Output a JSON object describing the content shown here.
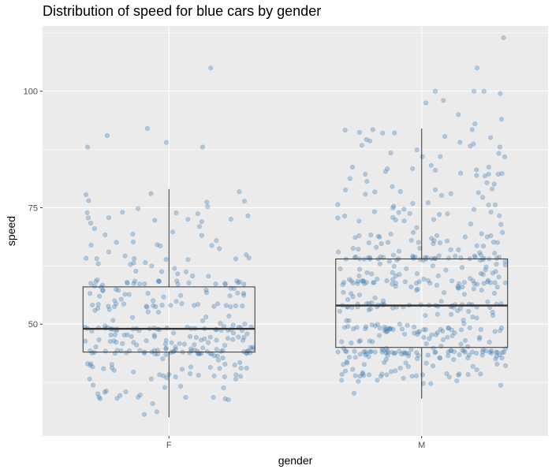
{
  "chart_data": {
    "type": "scatter",
    "subtype": "boxplot-with-jitter",
    "title": "Distribution of speed for blue cars by gender",
    "xlabel": "gender",
    "ylabel": "speed",
    "categories": [
      "F",
      "M"
    ],
    "ylim": [
      26,
      114
    ],
    "yticks": [
      50,
      75,
      100
    ],
    "y_tick_labels": [
      "50",
      "75",
      "100"
    ],
    "grid": true,
    "panel_background": "#ebebeb",
    "grid_color": "#ffffff",
    "point_color": "#4682b4",
    "box_line_color": "#333333",
    "boxes": [
      {
        "category": "F",
        "whisker_low": 30,
        "q1": 44,
        "median": 49,
        "q3": 58,
        "whisker_high": 79
      },
      {
        "category": "M",
        "whisker_low": 34,
        "q1": 45,
        "median": 54,
        "q3": 64,
        "whisker_high": 92
      }
    ],
    "series": [
      {
        "category": "F",
        "n_points": 320,
        "outliers": [
          105,
          92,
          89,
          88,
          88,
          90.5
        ]
      },
      {
        "category": "M",
        "n_points": 480,
        "outliers": [
          111.5,
          100,
          100,
          100,
          105,
          98,
          99.5,
          97.5,
          95,
          94,
          93
        ]
      }
    ]
  }
}
